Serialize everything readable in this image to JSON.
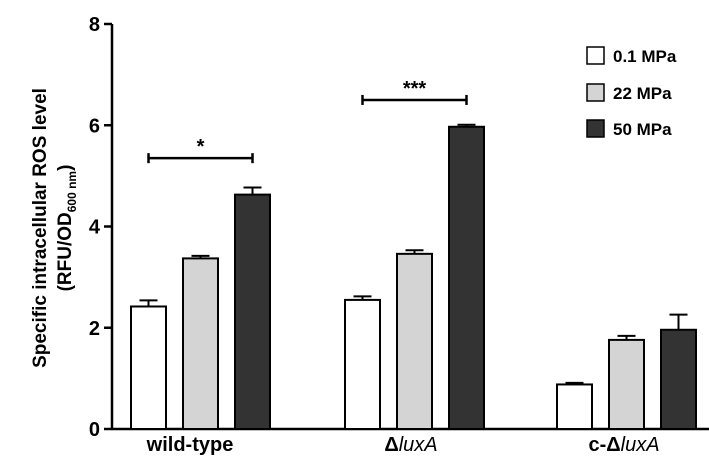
{
  "chart_data": {
    "type": "bar",
    "ylabel_line1": "Specific intracellular ROS level",
    "ylabel_line2_pre": "(RFU/OD",
    "ylabel_line2_sub": "600 nm",
    "ylabel_line2_post": ")",
    "ylim": [
      0,
      8
    ],
    "yticks": [
      "0",
      "2",
      "4",
      "6",
      "8"
    ],
    "grid": false,
    "legend_position": "top-right",
    "groups": [
      {
        "label_prefix": "",
        "label_delta": "",
        "label_italic": "",
        "label_plain": "wild-type"
      },
      {
        "label_prefix": "",
        "label_delta": "Δ",
        "label_italic": "luxA",
        "label_plain": ""
      },
      {
        "label_prefix": "c-",
        "label_delta": "Δ",
        "label_italic": "luxA",
        "label_plain": ""
      }
    ],
    "series": [
      {
        "name": "0.1 MPa",
        "color": "#ffffff",
        "values": [
          2.42,
          2.55,
          0.88
        ],
        "errors": [
          0.12,
          0.07,
          0.03
        ]
      },
      {
        "name": "22 MPa",
        "color": "#d4d4d4",
        "values": [
          3.37,
          3.46,
          1.76
        ],
        "errors": [
          0.05,
          0.07,
          0.08
        ]
      },
      {
        "name": "50 MPa",
        "color": "#333333",
        "values": [
          4.63,
          5.97,
          1.96
        ],
        "errors": [
          0.14,
          0.04,
          0.3
        ]
      }
    ],
    "significance": [
      {
        "group": 0,
        "from_series": 0,
        "to_series": 2,
        "y": 5.35,
        "label": "*"
      },
      {
        "group": 1,
        "from_series": 0,
        "to_series": 2,
        "y": 6.5,
        "label": "***"
      }
    ]
  }
}
